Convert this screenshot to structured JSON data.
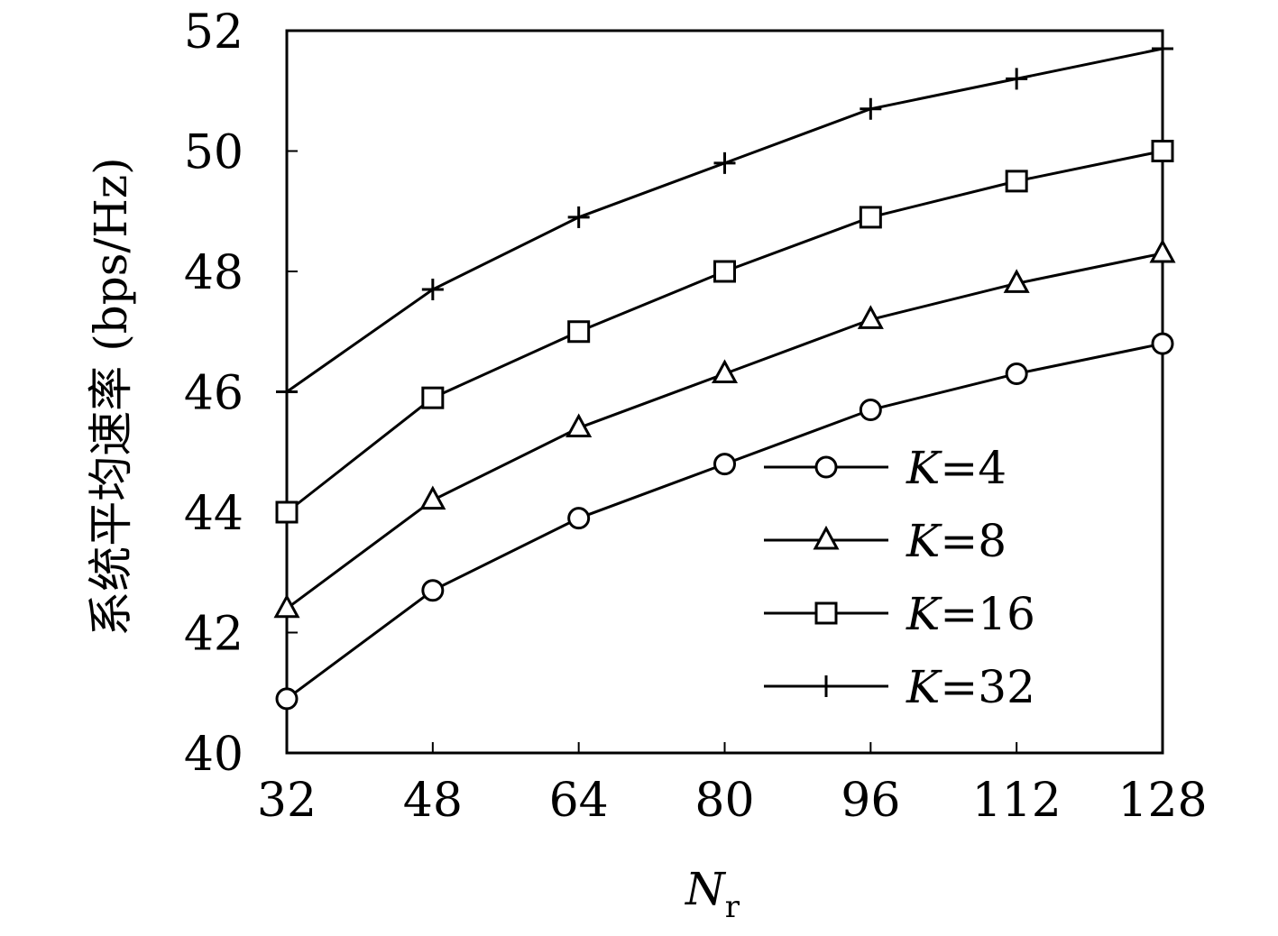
{
  "chart_data": {
    "type": "line",
    "title": "",
    "xlabel": {
      "main": "N",
      "sub": "r"
    },
    "ylabel": "系统平均速率 (bps/Hz)",
    "x": [
      32,
      48,
      64,
      80,
      96,
      112,
      128
    ],
    "x_tick_labels": [
      "32",
      "48",
      "64",
      "80",
      "96",
      "112",
      "128"
    ],
    "y_tick_labels": [
      "40",
      "42",
      "44",
      "46",
      "48",
      "50",
      "52"
    ],
    "xlim": [
      32,
      128
    ],
    "ylim": [
      40,
      52
    ],
    "grid": false,
    "legend_position": "lower-right",
    "series": [
      {
        "name": "K=4",
        "marker": "circle",
        "values": [
          40.9,
          42.7,
          43.9,
          44.8,
          45.7,
          46.3,
          46.8
        ]
      },
      {
        "name": "K=8",
        "marker": "triangle",
        "values": [
          42.4,
          44.2,
          45.4,
          46.3,
          47.2,
          47.8,
          48.3
        ]
      },
      {
        "name": "K=16",
        "marker": "square",
        "values": [
          44.0,
          45.9,
          47.0,
          48.0,
          48.9,
          49.5,
          50.0
        ]
      },
      {
        "name": "K=32",
        "marker": "plus",
        "values": [
          46.0,
          47.7,
          48.9,
          49.8,
          50.7,
          51.2,
          51.7
        ]
      }
    ],
    "colors": {
      "line": "#000000",
      "marker_fill": "#ffffff"
    }
  }
}
